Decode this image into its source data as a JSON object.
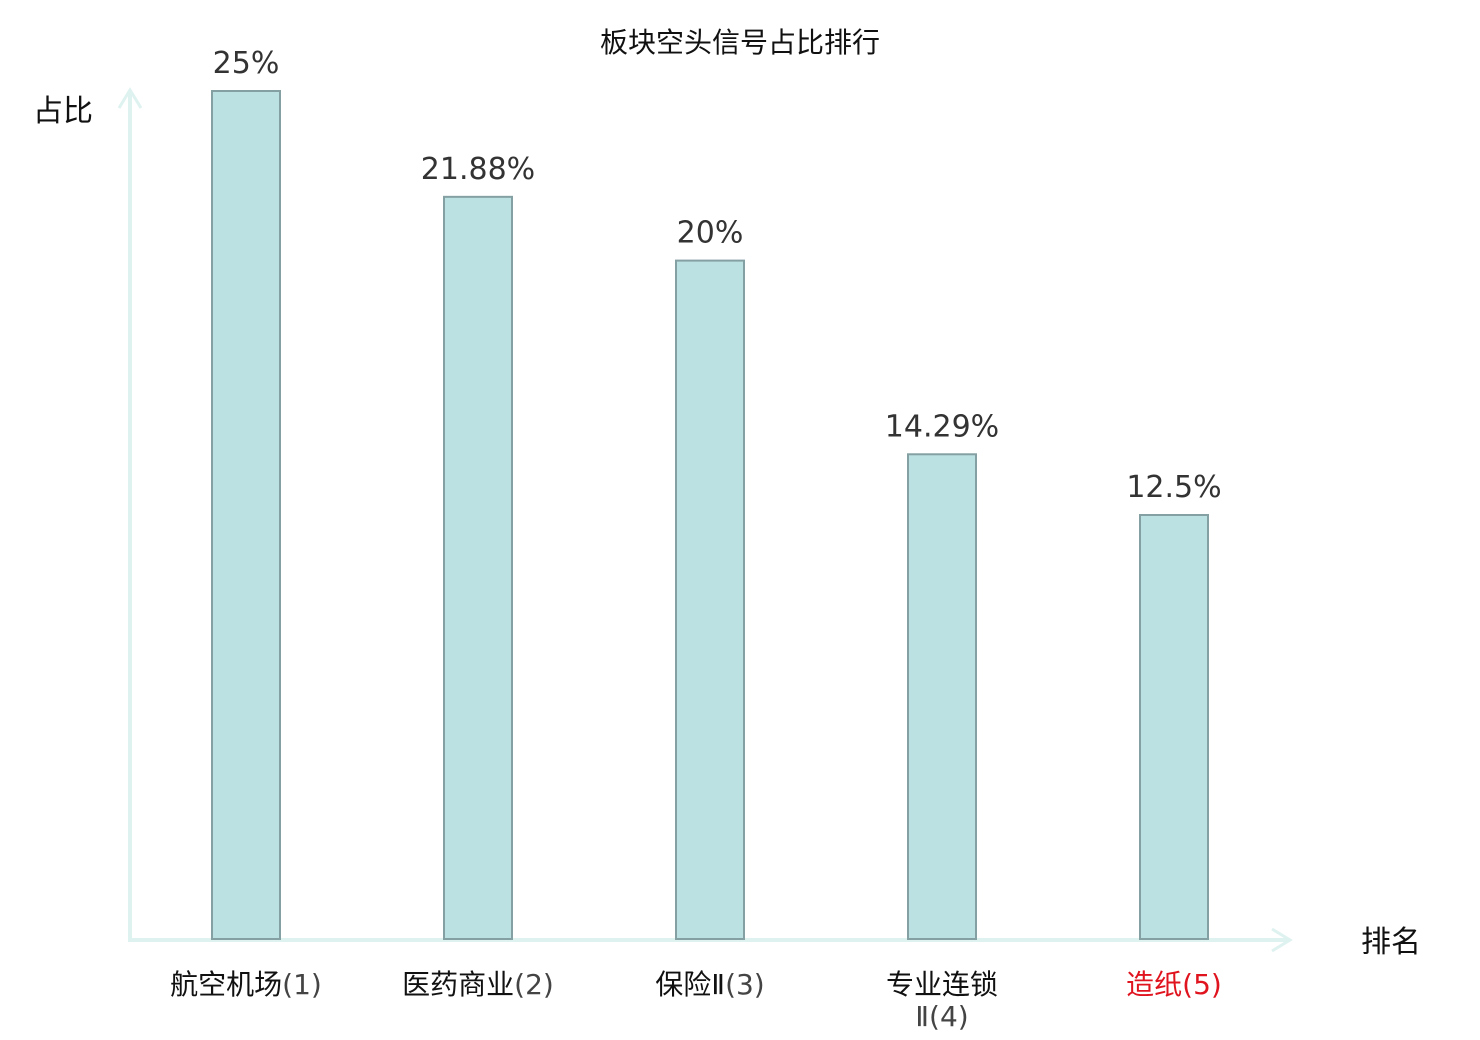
{
  "chart_data": {
    "type": "bar",
    "title": "板块空头信号占比排行",
    "xlabel": "排名",
    "ylabel": "占比",
    "ylim": [
      0,
      25
    ],
    "categories": [
      {
        "name": "航空机场",
        "rank": "(1)",
        "highlight": false
      },
      {
        "name": "医药商业",
        "rank": "(2)",
        "highlight": false
      },
      {
        "name": "保险Ⅱ",
        "rank": "(3)",
        "highlight": false
      },
      {
        "name": "专业连锁",
        "rank": "Ⅱ(4)",
        "highlight": false
      },
      {
        "name": "造纸",
        "rank": "(5)",
        "highlight": true
      }
    ],
    "values": [
      25,
      21.88,
      20,
      14.29,
      12.5
    ],
    "value_labels": [
      "25%",
      "21.88%",
      "20%",
      "14.29%",
      "12.5%"
    ],
    "grid": false,
    "legend": "none"
  },
  "colors": {
    "bar_fill": "#bce1e2",
    "bar_stroke": "#84a0a2",
    "axis": "#def2ef",
    "highlight_text": "#e0141e",
    "normal_text": "#111111"
  }
}
